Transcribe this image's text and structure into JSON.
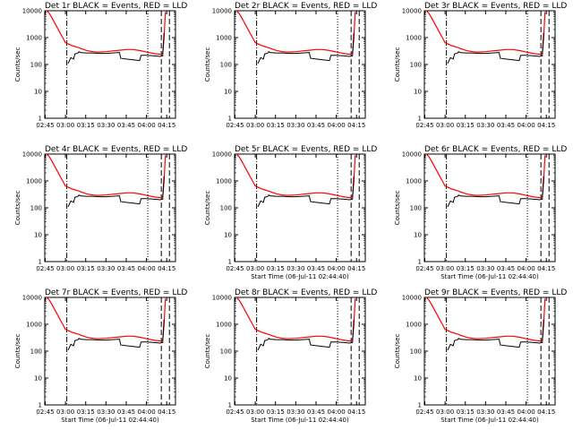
{
  "figure": {
    "panels": [
      {
        "title": "Det 1r BLACK = Events, RED = LLD",
        "xlabel": "",
        "ylabel": "Counts/sec"
      },
      {
        "title": "Det 2r BLACK = Events, RED = LLD",
        "xlabel": "",
        "ylabel": "Counts/sec"
      },
      {
        "title": "Det 3r BLACK = Events, RED = LLD",
        "xlabel": "",
        "ylabel": "Counts/sec"
      },
      {
        "title": "Det 4r BLACK = Events, RED = LLD",
        "xlabel": "",
        "ylabel": "Counts/sec"
      },
      {
        "title": "Det 5r BLACK = Events, RED = LLD",
        "xlabel": "Start Time (06-Jul-11 02:44:40)",
        "ylabel": "Counts/sec"
      },
      {
        "title": "Det 6r BLACK = Events, RED = LLD",
        "xlabel": "Start Time (06-Jul-11 02:44:40)",
        "ylabel": "Counts/sec"
      },
      {
        "title": "Det 7r BLACK = Events, RED = LLD",
        "xlabel": "Start Time (06-Jul-11 02:44:40)",
        "ylabel": "Counts/sec"
      },
      {
        "title": "Det 8r BLACK = Events, RED = LLD",
        "xlabel": "Start Time (06-Jul-11 02:44:40)",
        "ylabel": "Counts/sec"
      },
      {
        "title": "Det 9r BLACK = Events, RED = LLD",
        "xlabel": "Start Time (06-Jul-11 02:44:40)",
        "ylabel": "Counts/sec"
      }
    ],
    "colors": {
      "events": "#000000",
      "lld": "#ff0000",
      "axes": "#000000"
    }
  },
  "chart_data": {
    "type": "line",
    "layout": "3x3 grid of identical-format panels",
    "y_scale": "log",
    "ylim": [
      1,
      10000
    ],
    "yticks": [
      1,
      10,
      100,
      1000,
      10000
    ],
    "ytick_labels": [
      "1",
      "10",
      "100",
      "1000",
      "10000"
    ],
    "xlim": [
      "02:44:40",
      "04:21:30"
    ],
    "xticks": [
      "02:45",
      "03:00",
      "03:15",
      "03:30",
      "03:45",
      "04:00",
      "04:15"
    ],
    "grid": false,
    "vertical_markers": [
      {
        "time": "03:01",
        "style": "dash-dot"
      },
      {
        "time": "04:01",
        "style": "dotted"
      },
      {
        "time": "04:11",
        "style": "dashed"
      },
      {
        "time": "04:17",
        "style": "dashed"
      }
    ],
    "series": [
      {
        "color": "#ff0000",
        "x": [
          "02:46",
          "02:48",
          "02:50",
          "02:52",
          "02:54",
          "02:56",
          "02:58",
          "03:00",
          "03:05",
          "03:10",
          "03:15",
          "03:20",
          "03:25",
          "03:30",
          "03:35",
          "03:40",
          "03:45",
          "03:50",
          "03:55",
          "04:00",
          "04:05",
          "04:10",
          "04:12",
          "04:13",
          "04:14"
        ],
        "y": [
          10000,
          8000,
          5500,
          3500,
          2300,
          1500,
          1000,
          650,
          500,
          420,
          340,
          300,
          290,
          300,
          320,
          340,
          360,
          360,
          330,
          290,
          260,
          240,
          260,
          900,
          9000
        ]
      },
      {
        "color": "#000000",
        "x": [
          "03:02",
          "03:04",
          "03:06",
          "03:07",
          "03:09",
          "03:10",
          "03:11",
          "03:15",
          "03:20",
          "03:25",
          "03:30",
          "03:35",
          "03:40",
          "03:41",
          "03:45",
          "03:50",
          "03:55",
          "03:56",
          "04:00",
          "04:05",
          "04:10",
          "04:12",
          "04:13"
        ],
        "y": [
          110,
          180,
          160,
          250,
          260,
          300,
          280,
          270,
          270,
          260,
          260,
          270,
          280,
          170,
          160,
          150,
          140,
          220,
          220,
          210,
          200,
          210,
          1500
        ]
      }
    ]
  }
}
